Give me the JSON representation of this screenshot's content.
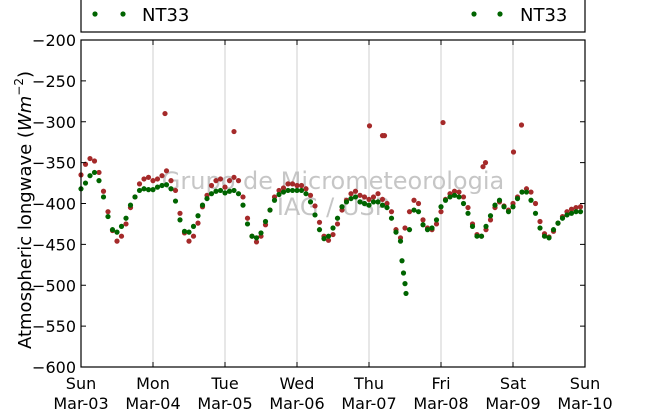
{
  "chart_data": {
    "type": "scatter",
    "ylabel": "Atmospheric longwave (Wm^-2)",
    "ylim": [
      -600,
      -200
    ],
    "yticks": [
      -200,
      -250,
      -300,
      -350,
      -400,
      -450,
      -500,
      -550,
      -600
    ],
    "xlim": [
      "2013-03-03",
      "2013-03-10"
    ],
    "xticks": [
      {
        "date": "2013-03-03",
        "day": "Sun",
        "label": "Mar-03"
      },
      {
        "date": "2013-03-04",
        "day": "Mon",
        "label": "Mar-04"
      },
      {
        "date": "2013-03-05",
        "day": "Tue",
        "label": "Mar-05"
      },
      {
        "date": "2013-03-06",
        "day": "Wed",
        "label": "Mar-06"
      },
      {
        "date": "2013-03-07",
        "day": "Thu",
        "label": "Mar-07"
      },
      {
        "date": "2013-03-08",
        "day": "Fri",
        "label": "Mar-08"
      },
      {
        "date": "2013-03-09",
        "day": "Sat",
        "label": "Mar-09"
      },
      {
        "date": "2013-03-10",
        "day": "Sun",
        "label": "Mar-10"
      }
    ],
    "grid": "vertical",
    "legend": {
      "placement": "top",
      "entries": [
        "NT33",
        "NT33"
      ]
    },
    "watermark": [
      "Grupo de Micrometeorologia",
      "IAG / USP"
    ],
    "series": [
      {
        "name": "NT33",
        "color": "#a52a2a",
        "points": [
          [
            "2013-03-03T00:00",
            -365
          ],
          [
            "2013-03-03T01:30",
            -352
          ],
          [
            "2013-03-03T03:00",
            -345
          ],
          [
            "2013-03-03T04:30",
            -348
          ],
          [
            "2013-03-03T06:00",
            -362
          ],
          [
            "2013-03-03T07:30",
            -385
          ],
          [
            "2013-03-03T09:00",
            -410
          ],
          [
            "2013-03-03T10:30",
            -433
          ],
          [
            "2013-03-03T12:00",
            -446
          ],
          [
            "2013-03-03T13:30",
            -440
          ],
          [
            "2013-03-03T15:00",
            -425
          ],
          [
            "2013-03-03T16:30",
            -405
          ],
          [
            "2013-03-03T18:00",
            -392
          ],
          [
            "2013-03-03T19:30",
            -376
          ],
          [
            "2013-03-03T21:00",
            -370
          ],
          [
            "2013-03-03T22:30",
            -368
          ],
          [
            "2013-03-04T00:00",
            -372
          ],
          [
            "2013-03-04T01:30",
            -370
          ],
          [
            "2013-03-04T03:00",
            -366
          ],
          [
            "2013-03-04T04:30",
            -360
          ],
          [
            "2013-03-04T06:00",
            -372
          ],
          [
            "2013-03-04T07:30",
            -384
          ],
          [
            "2013-03-04T09:00",
            -412
          ],
          [
            "2013-03-04T10:30",
            -436
          ],
          [
            "2013-03-04T12:00",
            -446
          ],
          [
            "2013-03-04T13:30",
            -440
          ],
          [
            "2013-03-04T15:00",
            -424
          ],
          [
            "2013-03-04T16:30",
            -404
          ],
          [
            "2013-03-04T18:00",
            -390
          ],
          [
            "2013-03-04T19:30",
            -378
          ],
          [
            "2013-03-04T21:00",
            -372
          ],
          [
            "2013-03-04T22:30",
            -370
          ],
          [
            "2013-03-05T00:00",
            -380
          ],
          [
            "2013-03-05T01:30",
            -372
          ],
          [
            "2013-03-05T03:00",
            -368
          ],
          [
            "2013-03-05T04:30",
            -372
          ],
          [
            "2013-03-05T06:00",
            -392
          ],
          [
            "2013-03-05T07:30",
            -418
          ],
          [
            "2013-03-05T09:00",
            -440
          ],
          [
            "2013-03-05T10:30",
            -447
          ],
          [
            "2013-03-05T12:00",
            -440
          ],
          [
            "2013-03-05T13:30",
            -426
          ],
          [
            "2013-03-05T15:00",
            -408
          ],
          [
            "2013-03-05T16:30",
            -392
          ],
          [
            "2013-03-05T18:00",
            -384
          ],
          [
            "2013-03-05T19:30",
            -381
          ],
          [
            "2013-03-05T21:00",
            -376
          ],
          [
            "2013-03-05T22:30",
            -376
          ],
          [
            "2013-03-06T00:00",
            -378
          ],
          [
            "2013-03-06T01:30",
            -378
          ],
          [
            "2013-03-06T03:00",
            -382
          ],
          [
            "2013-03-06T04:30",
            -390
          ],
          [
            "2013-03-06T06:00",
            -403
          ],
          [
            "2013-03-06T07:30",
            -423
          ],
          [
            "2013-03-06T09:00",
            -440
          ],
          [
            "2013-03-06T10:30",
            -445
          ],
          [
            "2013-03-06T12:00",
            -438
          ],
          [
            "2013-03-06T13:30",
            -425
          ],
          [
            "2013-03-06T15:00",
            -408
          ],
          [
            "2013-03-06T16:30",
            -396
          ],
          [
            "2013-03-06T18:00",
            -388
          ],
          [
            "2013-03-06T19:30",
            -385
          ],
          [
            "2013-03-06T21:00",
            -390
          ],
          [
            "2013-03-06T22:30",
            -392
          ],
          [
            "2013-03-07T00:00",
            -395
          ],
          [
            "2013-03-07T01:30",
            -392
          ],
          [
            "2013-03-07T03:00",
            -388
          ],
          [
            "2013-03-07T04:30",
            -395
          ],
          [
            "2013-03-07T06:00",
            -400
          ],
          [
            "2013-03-07T07:30",
            -410
          ],
          [
            "2013-03-07T09:00",
            -432
          ],
          [
            "2013-03-07T10:30",
            -442
          ],
          [
            "2013-03-07T12:00",
            -430
          ],
          [
            "2013-03-07T13:30",
            -410
          ],
          [
            "2013-03-07T15:00",
            -396
          ],
          [
            "2013-03-07T16:30",
            -400
          ],
          [
            "2013-03-07T18:00",
            -420
          ],
          [
            "2013-03-07T19:30",
            -430
          ],
          [
            "2013-03-07T21:00",
            -432
          ],
          [
            "2013-03-07T22:30",
            -425
          ],
          [
            "2013-03-08T00:00",
            -410
          ],
          [
            "2013-03-08T01:30",
            -395
          ],
          [
            "2013-03-08T03:00",
            -388
          ],
          [
            "2013-03-08T04:30",
            -385
          ],
          [
            "2013-03-08T06:00",
            -386
          ],
          [
            "2013-03-08T07:30",
            -392
          ],
          [
            "2013-03-08T09:00",
            -405
          ],
          [
            "2013-03-08T10:30",
            -425
          ],
          [
            "2013-03-08T12:00",
            -438
          ],
          [
            "2013-03-08T13:30",
            -440
          ],
          [
            "2013-03-08T15:00",
            -432
          ],
          [
            "2013-03-08T16:30",
            -420
          ],
          [
            "2013-03-08T18:00",
            -405
          ],
          [
            "2013-03-08T19:30",
            -398
          ],
          [
            "2013-03-08T21:00",
            -403
          ],
          [
            "2013-03-08T22:30",
            -408
          ],
          [
            "2013-03-09T00:00",
            -400
          ],
          [
            "2013-03-09T01:30",
            -392
          ],
          [
            "2013-03-09T03:00",
            -386
          ],
          [
            "2013-03-09T04:30",
            -382
          ],
          [
            "2013-03-09T06:00",
            -386
          ],
          [
            "2013-03-09T07:30",
            -400
          ],
          [
            "2013-03-09T09:00",
            -422
          ],
          [
            "2013-03-09T10:30",
            -437
          ],
          [
            "2013-03-09T12:00",
            -441
          ],
          [
            "2013-03-09T13:30",
            -434
          ],
          [
            "2013-03-09T15:00",
            -424
          ],
          [
            "2013-03-09T16:30",
            -416
          ],
          [
            "2013-03-09T18:00",
            -410
          ],
          [
            "2013-03-09T19:30",
            -407
          ],
          [
            "2013-03-09T21:00",
            -405
          ],
          [
            "2013-03-09T22:30",
            -404
          ],
          [
            "2013-03-04T04:00",
            -290
          ],
          [
            "2013-03-05T03:00",
            -312
          ],
          [
            "2013-03-07T00:10",
            -305
          ],
          [
            "2013-03-07T04:30",
            -317
          ],
          [
            "2013-03-07T05:10",
            -317
          ],
          [
            "2013-03-08T00:40",
            -301
          ],
          [
            "2013-03-08T14:00",
            -355
          ],
          [
            "2013-03-08T14:50",
            -350
          ],
          [
            "2013-03-09T00:10",
            -337
          ],
          [
            "2013-03-09T02:50",
            -304
          ]
        ]
      },
      {
        "name": "NT33",
        "color": "#006400",
        "points": [
          [
            "2013-03-03T00:00",
            -382
          ],
          [
            "2013-03-03T01:30",
            -375
          ],
          [
            "2013-03-03T03:00",
            -366
          ],
          [
            "2013-03-03T04:30",
            -362
          ],
          [
            "2013-03-03T06:00",
            -372
          ],
          [
            "2013-03-03T07:30",
            -392
          ],
          [
            "2013-03-03T09:00",
            -416
          ],
          [
            "2013-03-03T10:30",
            -432
          ],
          [
            "2013-03-03T12:00",
            -435
          ],
          [
            "2013-03-03T13:30",
            -428
          ],
          [
            "2013-03-03T15:00",
            -418
          ],
          [
            "2013-03-03T16:30",
            -402
          ],
          [
            "2013-03-03T18:00",
            -392
          ],
          [
            "2013-03-03T19:30",
            -384
          ],
          [
            "2013-03-03T21:00",
            -382
          ],
          [
            "2013-03-03T22:30",
            -383
          ],
          [
            "2013-03-04T00:00",
            -383
          ],
          [
            "2013-03-04T01:30",
            -380
          ],
          [
            "2013-03-04T03:00",
            -378
          ],
          [
            "2013-03-04T04:30",
            -377
          ],
          [
            "2013-03-04T06:00",
            -382
          ],
          [
            "2013-03-04T07:30",
            -397
          ],
          [
            "2013-03-04T09:00",
            -420
          ],
          [
            "2013-03-04T10:30",
            -434
          ],
          [
            "2013-03-04T12:00",
            -435
          ],
          [
            "2013-03-04T13:30",
            -428
          ],
          [
            "2013-03-04T15:00",
            -415
          ],
          [
            "2013-03-04T16:30",
            -402
          ],
          [
            "2013-03-04T18:00",
            -394
          ],
          [
            "2013-03-04T19:30",
            -388
          ],
          [
            "2013-03-04T21:00",
            -385
          ],
          [
            "2013-03-04T22:30",
            -384
          ],
          [
            "2013-03-05T00:00",
            -387
          ],
          [
            "2013-03-05T01:30",
            -385
          ],
          [
            "2013-03-05T03:00",
            -384
          ],
          [
            "2013-03-05T04:30",
            -388
          ],
          [
            "2013-03-05T06:00",
            -402
          ],
          [
            "2013-03-05T07:30",
            -425
          ],
          [
            "2013-03-05T09:00",
            -440
          ],
          [
            "2013-03-05T10:30",
            -442
          ],
          [
            "2013-03-05T12:00",
            -436
          ],
          [
            "2013-03-05T13:30",
            -422
          ],
          [
            "2013-03-05T15:00",
            -408
          ],
          [
            "2013-03-05T16:30",
            -396
          ],
          [
            "2013-03-05T18:00",
            -389
          ],
          [
            "2013-03-05T19:30",
            -386
          ],
          [
            "2013-03-05T21:00",
            -384
          ],
          [
            "2013-03-05T22:30",
            -384
          ],
          [
            "2013-03-06T00:00",
            -384
          ],
          [
            "2013-03-06T01:30",
            -384
          ],
          [
            "2013-03-06T03:00",
            -388
          ],
          [
            "2013-03-06T04:30",
            -398
          ],
          [
            "2013-03-06T06:00",
            -414
          ],
          [
            "2013-03-06T07:30",
            -432
          ],
          [
            "2013-03-06T09:00",
            -443
          ],
          [
            "2013-03-06T10:30",
            -440
          ],
          [
            "2013-03-06T12:00",
            -430
          ],
          [
            "2013-03-06T13:30",
            -418
          ],
          [
            "2013-03-06T15:00",
            -404
          ],
          [
            "2013-03-06T16:30",
            -398
          ],
          [
            "2013-03-06T18:00",
            -394
          ],
          [
            "2013-03-06T19:30",
            -392
          ],
          [
            "2013-03-06T21:00",
            -398
          ],
          [
            "2013-03-06T22:30",
            -400
          ],
          [
            "2013-03-07T00:00",
            -402
          ],
          [
            "2013-03-07T01:30",
            -398
          ],
          [
            "2013-03-07T03:00",
            -398
          ],
          [
            "2013-03-07T04:30",
            -402
          ],
          [
            "2013-03-07T06:00",
            -405
          ],
          [
            "2013-03-07T07:30",
            -418
          ],
          [
            "2013-03-07T09:00",
            -435
          ],
          [
            "2013-03-07T10:30",
            -446
          ],
          [
            "2013-03-07T11:00",
            -470
          ],
          [
            "2013-03-07T11:30",
            -485
          ],
          [
            "2013-03-07T12:00",
            -498
          ],
          [
            "2013-03-07T12:20",
            -510
          ],
          [
            "2013-03-07T13:30",
            -432
          ],
          [
            "2013-03-07T15:00",
            -408
          ],
          [
            "2013-03-07T16:30",
            -410
          ],
          [
            "2013-03-07T18:00",
            -426
          ],
          [
            "2013-03-07T19:30",
            -432
          ],
          [
            "2013-03-07T21:00",
            -430
          ],
          [
            "2013-03-07T22:30",
            -420
          ],
          [
            "2013-03-08T00:00",
            -404
          ],
          [
            "2013-03-08T01:30",
            -396
          ],
          [
            "2013-03-08T03:00",
            -392
          ],
          [
            "2013-03-08T04:30",
            -390
          ],
          [
            "2013-03-08T06:00",
            -392
          ],
          [
            "2013-03-08T07:30",
            -400
          ],
          [
            "2013-03-08T09:00",
            -412
          ],
          [
            "2013-03-08T10:30",
            -428
          ],
          [
            "2013-03-08T12:00",
            -440
          ],
          [
            "2013-03-08T13:30",
            -440
          ],
          [
            "2013-03-08T15:00",
            -428
          ],
          [
            "2013-03-08T16:30",
            -415
          ],
          [
            "2013-03-08T18:00",
            -402
          ],
          [
            "2013-03-08T19:30",
            -396
          ],
          [
            "2013-03-08T21:00",
            -404
          ],
          [
            "2013-03-08T22:30",
            -410
          ],
          [
            "2013-03-09T00:00",
            -404
          ],
          [
            "2013-03-09T01:30",
            -394
          ],
          [
            "2013-03-09T03:00",
            -386
          ],
          [
            "2013-03-09T04:30",
            -386
          ],
          [
            "2013-03-09T06:00",
            -396
          ],
          [
            "2013-03-09T07:30",
            -412
          ],
          [
            "2013-03-09T09:00",
            -430
          ],
          [
            "2013-03-09T10:30",
            -440
          ],
          [
            "2013-03-09T12:00",
            -442
          ],
          [
            "2013-03-09T13:30",
            -432
          ],
          [
            "2013-03-09T15:00",
            -424
          ],
          [
            "2013-03-09T16:30",
            -418
          ],
          [
            "2013-03-09T18:00",
            -414
          ],
          [
            "2013-03-09T19:30",
            -412
          ],
          [
            "2013-03-09T21:00",
            -410
          ],
          [
            "2013-03-09T22:30",
            -410
          ]
        ]
      }
    ]
  }
}
